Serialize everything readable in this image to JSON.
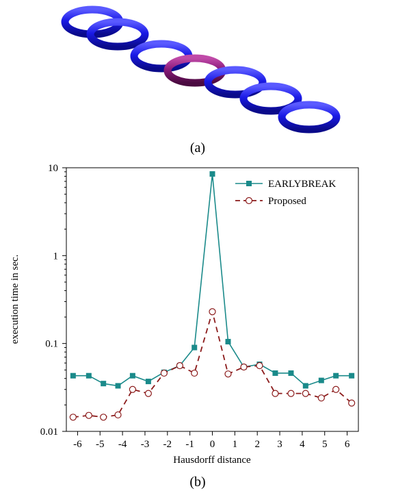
{
  "panel_a_label": "(a)",
  "panel_b_label": "(b)",
  "torus_colors": {
    "chain": "#1a1ae6",
    "highlight": "#8a1a7a"
  },
  "chart_data": {
    "type": "line",
    "xlabel": "Hausdorff distance",
    "ylabel": "execution time in sec.",
    "yscale": "log",
    "ylim": [
      0.01,
      10
    ],
    "xlim": [
      -6.5,
      6.5
    ],
    "xticks": [
      -6,
      -5,
      -4,
      -3,
      -2,
      -1,
      0,
      1,
      2,
      3,
      4,
      5,
      6
    ],
    "xtick_labels": [
      "-6",
      "-5",
      "-4",
      "-3",
      "-2",
      "-1",
      "0",
      "1",
      "2",
      "3",
      "4",
      "5",
      "6"
    ],
    "yticks": [
      0.01,
      0.1,
      1,
      10
    ],
    "ytick_labels": [
      "0.01",
      "0.1",
      "1",
      "10"
    ],
    "grid": false,
    "legend_position": "top-right",
    "series": [
      {
        "name": "EARLYBREAK",
        "color": "#1a8a8a",
        "marker": "square-filled",
        "linestyle": "solid",
        "x": [
          -6.2,
          -5.5,
          -4.85,
          -4.2,
          -3.55,
          -2.85,
          -2.15,
          -1.45,
          -0.8,
          0,
          0.7,
          1.4,
          2.1,
          2.8,
          3.5,
          4.15,
          4.85,
          5.5,
          6.2
        ],
        "y": [
          0.043,
          0.043,
          0.035,
          0.033,
          0.043,
          0.037,
          0.047,
          0.056,
          0.09,
          8.5,
          0.105,
          0.054,
          0.058,
          0.046,
          0.046,
          0.033,
          0.038,
          0.043,
          0.043
        ]
      },
      {
        "name": "Proposed",
        "color": "#8b1a1a",
        "marker": "circle-open",
        "linestyle": "dashed",
        "x": [
          -6.2,
          -5.5,
          -4.85,
          -4.2,
          -3.55,
          -2.85,
          -2.15,
          -1.45,
          -0.8,
          0,
          0.7,
          1.4,
          2.1,
          2.8,
          3.5,
          4.15,
          4.85,
          5.5,
          6.2
        ],
        "y": [
          0.0145,
          0.0152,
          0.0145,
          0.0154,
          0.03,
          0.027,
          0.046,
          0.056,
          0.046,
          0.23,
          0.045,
          0.054,
          0.056,
          0.027,
          0.027,
          0.027,
          0.024,
          0.03,
          0.021
        ]
      }
    ]
  }
}
